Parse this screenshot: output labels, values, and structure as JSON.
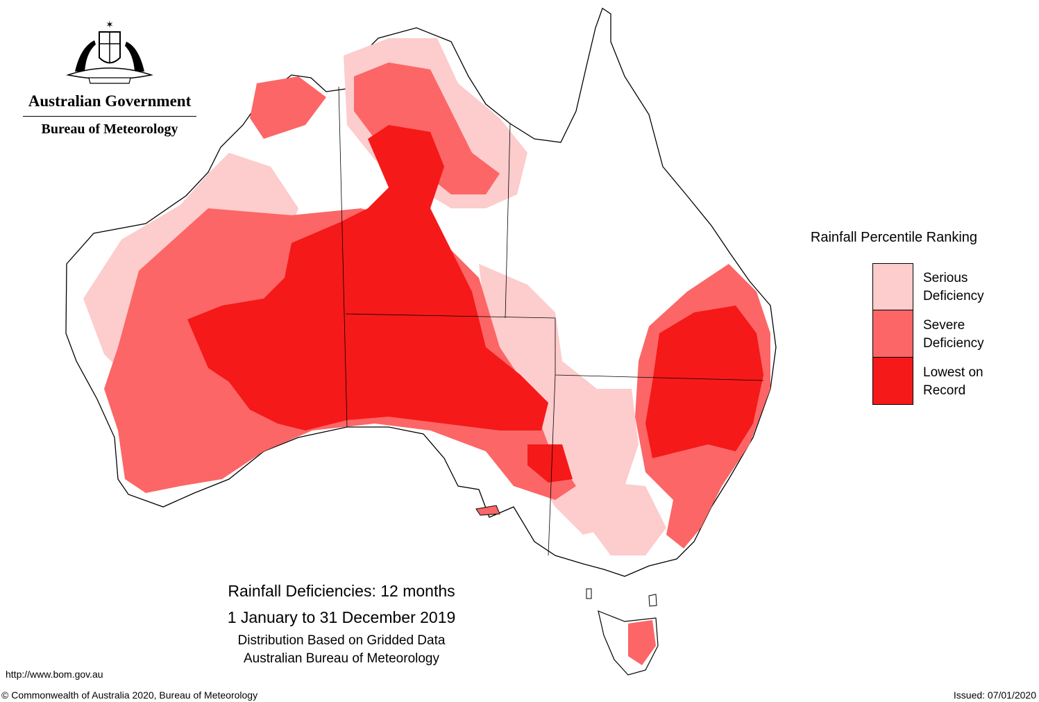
{
  "header": {
    "gov_name": "Australian Government",
    "bureau_name": "Bureau of Meteorology"
  },
  "legend": {
    "title": "Rainfall Percentile Ranking",
    "items": [
      {
        "label": "Serious\nDeficiency",
        "color": "#fdcccc"
      },
      {
        "label": "Severe\nDeficiency",
        "color": "#fc6666"
      },
      {
        "label": "Lowest on\nRecord",
        "color": "#f51919"
      }
    ]
  },
  "caption": {
    "line1": "Rainfall Deficiencies: 12 months",
    "line2": "1 January to 31 December 2019",
    "line3": "Distribution Based on Gridded Data",
    "line4": "Australian Bureau of Meteorology"
  },
  "footer": {
    "url": "http://www.bom.gov.au",
    "copyright": "© Commonwealth of Australia 2020, Bureau of Meteorology",
    "issued": "Issued: 07/01/2020"
  },
  "map_colors": {
    "land": "#ffffff",
    "outline": "#000000",
    "serious": "#fdcccc",
    "severe": "#fc6666",
    "lowest": "#f51919"
  }
}
